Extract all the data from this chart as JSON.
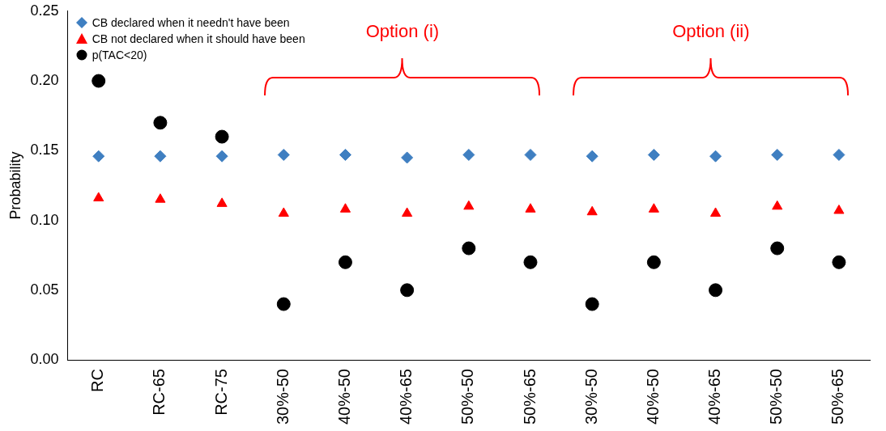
{
  "chart_data": {
    "type": "scatter",
    "ylabel": "Probability",
    "categories": [
      "RC",
      "RC-65",
      "RC-75",
      "30%-50",
      "40%-50",
      "40%-65",
      "50%-50",
      "50%-65",
      "30%-50",
      "40%-50",
      "40%-65",
      "50%-50",
      "50%-65"
    ],
    "series": [
      {
        "name": "CB declared when it needn't have been",
        "color": "#3f7fc1",
        "marker": "diamond",
        "values": [
          0.146,
          0.146,
          0.146,
          0.147,
          0.147,
          0.145,
          0.147,
          0.147,
          0.146,
          0.147,
          0.146,
          0.147,
          0.147
        ]
      },
      {
        "name": "CB not declared when it should have been",
        "color": "#ff0000",
        "marker": "triangle",
        "values": [
          0.116,
          0.115,
          0.112,
          0.105,
          0.108,
          0.105,
          0.11,
          0.108,
          0.106,
          0.108,
          0.105,
          0.11,
          0.107
        ]
      },
      {
        "name": "p(TAC<20)",
        "color": "#000000",
        "marker": "circle",
        "values": [
          0.2,
          0.17,
          0.16,
          0.04,
          0.07,
          0.05,
          0.08,
          0.07,
          0.04,
          0.07,
          0.05,
          0.08,
          0.07
        ]
      }
    ],
    "ylim": [
      0,
      0.25
    ],
    "yticks": [
      {
        "value": 0,
        "label": "0.00"
      },
      0.05,
      {
        "value": 0.1,
        "label": "0.10"
      },
      0.15,
      {
        "value": 0.2,
        "label": "0.20"
      },
      0.25
    ],
    "annotations": [
      "Option (i)",
      "Option (ii)"
    ],
    "grid": false,
    "legend": "top left"
  }
}
